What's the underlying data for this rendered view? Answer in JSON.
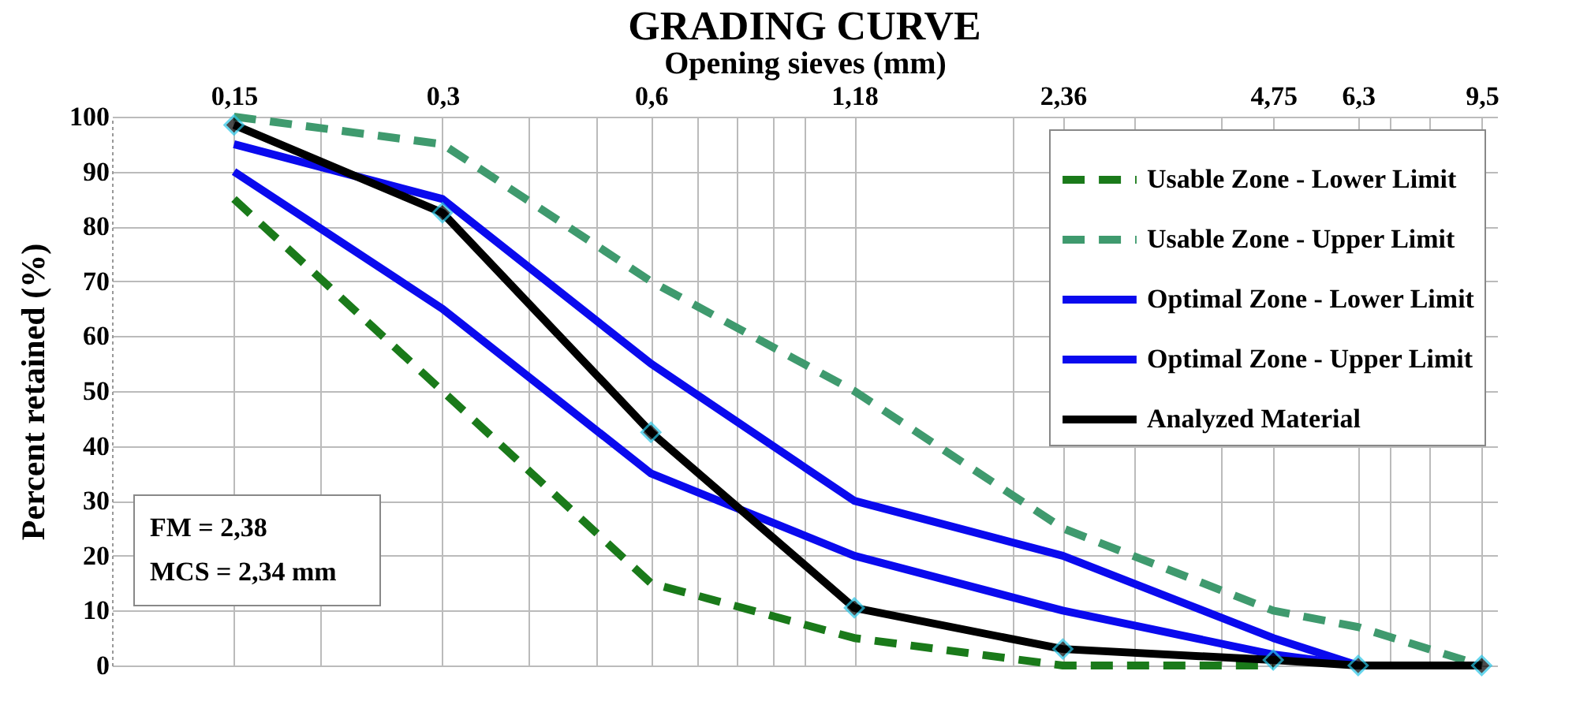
{
  "chart_data": {
    "type": "line",
    "title": "GRADING CURVE",
    "xlabel": "Opening sieves (mm)",
    "ylabel": "Percent retained (%)",
    "x": [
      0.15,
      0.3,
      0.6,
      1.18,
      2.36,
      4.75,
      6.3,
      9.5
    ],
    "series": [
      {
        "name": "Usable Zone - Lower Limit",
        "color": "#1a7a1a",
        "line_style": "dashed",
        "values": [
          85,
          50,
          15,
          5,
          0,
          0,
          null,
          null
        ]
      },
      {
        "name": "Usable Zone - Upper Limit",
        "color": "#3f9a6e",
        "line_style": "dashed",
        "values": [
          100,
          95,
          70,
          50,
          25,
          10,
          7,
          0
        ]
      },
      {
        "name": "Optimal Zone - Lower Limit",
        "color": "#0a0aee",
        "line_style": "solid",
        "values": [
          90,
          65,
          35,
          20,
          10,
          2,
          0,
          null
        ]
      },
      {
        "name": "Optimal Zone - Upper Limit",
        "color": "#0a0aee",
        "line_style": "solid",
        "values": [
          95,
          85,
          55,
          30,
          20,
          5,
          0,
          null
        ]
      },
      {
        "name": "Analyzed Material",
        "color": "#000000",
        "line_style": "solid",
        "marker": "diamond",
        "values": [
          98.5,
          82.5,
          42.5,
          10.5,
          3,
          1,
          0,
          0
        ]
      }
    ],
    "log": "x",
    "xlim": [
      0.1,
      10
    ],
    "ylim": [
      0,
      100
    ],
    "xticks": [
      {
        "value": 0.15,
        "label": "0,15"
      },
      {
        "value": 0.2,
        "label": null
      },
      {
        "value": 0.3,
        "label": "0,3"
      },
      {
        "value": 0.4,
        "label": null
      },
      {
        "value": 0.5,
        "label": null
      },
      {
        "value": 0.6,
        "label": "0,6"
      },
      {
        "value": 0.7,
        "label": null
      },
      {
        "value": 0.8,
        "label": null
      },
      {
        "value": 0.9,
        "label": null
      },
      {
        "value": 1,
        "label": null
      },
      {
        "value": 1.18,
        "label": "1,18"
      },
      {
        "value": 2,
        "label": null
      },
      {
        "value": 2.36,
        "label": "2,36"
      },
      {
        "value": 3,
        "label": null
      },
      {
        "value": 4,
        "label": null
      },
      {
        "value": 4.75,
        "label": "4,75"
      },
      {
        "value": 6.3,
        "label": "6,3"
      },
      {
        "value": 7,
        "label": null
      },
      {
        "value": 8,
        "label": null
      },
      {
        "value": 9.5,
        "label": "9,5"
      }
    ],
    "yticks": [
      0,
      10,
      20,
      30,
      40,
      50,
      60,
      70,
      80,
      90,
      100
    ],
    "grid": true,
    "legend": "top right",
    "annotations": [
      "FM = 2,38",
      "MCS = 2,34 mm"
    ]
  }
}
